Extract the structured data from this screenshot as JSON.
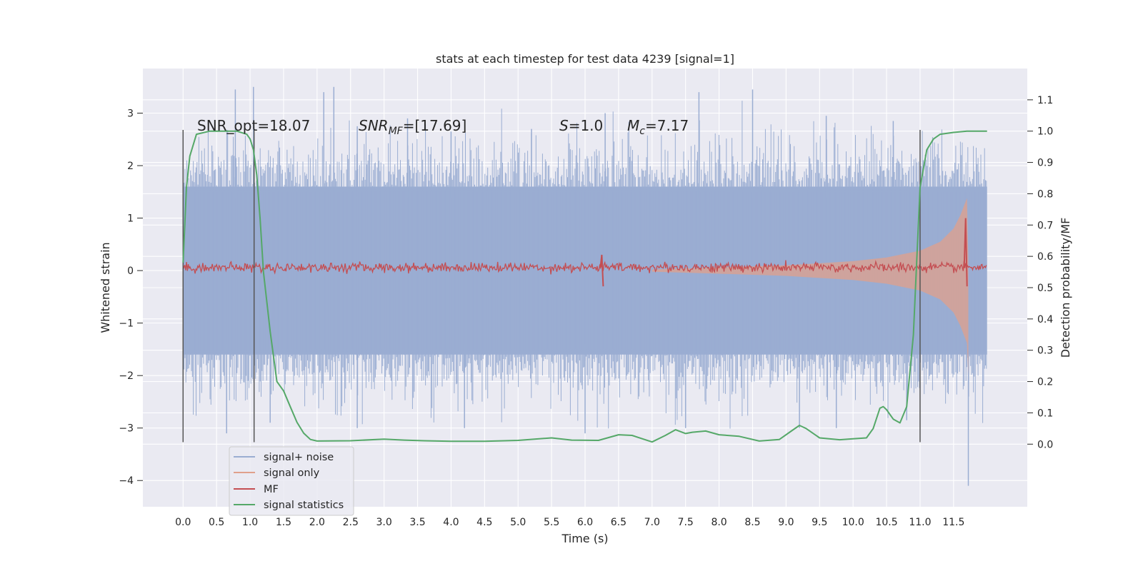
{
  "chart_data": {
    "type": "line",
    "title": "stats at each timestep for test data 4239 [signal=1]",
    "xlabel": "Time (s)",
    "ylabel": "Whitened strain",
    "y2label": "Detection probability/MF",
    "xlim": [
      -0.6,
      12.6
    ],
    "ylim": [
      -4.5,
      3.85
    ],
    "y2lim": [
      -0.2,
      1.2
    ],
    "x_ticks": [
      "0.0",
      "0.5",
      "1.0",
      "1.5",
      "2.0",
      "2.5",
      "3.0",
      "3.5",
      "4.0",
      "4.5",
      "5.0",
      "5.5",
      "6.0",
      "6.5",
      "7.0",
      "7.5",
      "8.0",
      "8.5",
      "9.0",
      "9.5",
      "10.0",
      "10.5",
      "11.0",
      "11.5"
    ],
    "y_ticks": [
      "3",
      "2",
      "1",
      "0",
      "−1",
      "−2",
      "−3",
      "−4"
    ],
    "y2_ticks": [
      "1.1",
      "1.0",
      "0.9",
      "0.8",
      "0.7",
      "0.6",
      "0.5",
      "0.4",
      "0.3",
      "0.2",
      "0.1",
      "0.0"
    ],
    "grid": true,
    "legend_position": "lower-left",
    "annotations": {
      "snr_opt": "SNR_opt=18.07",
      "snr_mf_sym": "SNR",
      "snr_mf_sub": "MF",
      "snr_mf_val": "=[17.69]",
      "s_sym": "S",
      "s_val": "=1.0",
      "mc_sym": "M",
      "mc_sub": "c",
      "mc_val": "=7.17"
    },
    "vertical_lines_x": [
      0.0,
      1.06,
      11.0
    ],
    "series": [
      {
        "name": "signal+ noise",
        "color": "#9aadd2",
        "kind": "noise-band",
        "x_range": [
          0.0,
          12.0
        ],
        "band_core": [
          -1.6,
          1.6
        ],
        "peaks_positive": [
          [
            0.78,
            3.45
          ],
          [
            1.05,
            3.5
          ],
          [
            2.25,
            3.5
          ],
          [
            2.1,
            3.4
          ],
          [
            7.7,
            3.4
          ],
          [
            8.5,
            3.45
          ],
          [
            6.3,
            3.0
          ],
          [
            9.6,
            2.95
          ],
          [
            3.35,
            2.9
          ],
          [
            10.6,
            2.85
          ],
          [
            2.6,
            2.75
          ],
          [
            4.0,
            2.65
          ],
          [
            5.2,
            2.7
          ]
        ],
        "peaks_negative": [
          [
            11.72,
            -4.1
          ],
          [
            0.65,
            -3.1
          ],
          [
            1.3,
            -2.9
          ],
          [
            2.6,
            -3.0
          ],
          [
            4.2,
            -3.0
          ],
          [
            6.0,
            -3.1
          ],
          [
            7.5,
            -3.0
          ],
          [
            9.2,
            -3.0
          ],
          [
            9.75,
            -3.0
          ],
          [
            10.8,
            -2.85
          ]
        ]
      },
      {
        "name": "signal only",
        "color": "#e0a08b",
        "kind": "chirp",
        "x": [
          7.0,
          8.0,
          9.0,
          10.0,
          10.5,
          11.0,
          11.3,
          11.5,
          11.6,
          11.7
        ],
        "amplitude": [
          0.02,
          0.06,
          0.1,
          0.18,
          0.25,
          0.38,
          0.55,
          0.8,
          1.05,
          1.38
        ]
      },
      {
        "name": "MF",
        "color": "#c44e52",
        "kind": "line",
        "baseline": 0.06,
        "spikes": [
          [
            6.25,
            0.3
          ],
          [
            11.68,
            1.0
          ]
        ]
      },
      {
        "name": "signal statistics",
        "color": "#55a868",
        "kind": "line",
        "x": [
          0.0,
          0.05,
          0.1,
          0.2,
          0.4,
          0.6,
          0.8,
          0.95,
          1.0,
          1.05,
          1.1,
          1.15,
          1.2,
          1.3,
          1.4,
          1.5,
          1.6,
          1.7,
          1.8,
          1.9,
          2.0,
          2.5,
          3.0,
          3.3,
          3.6,
          4.0,
          4.5,
          5.0,
          5.5,
          5.8,
          6.2,
          6.5,
          6.7,
          7.0,
          7.2,
          7.35,
          7.5,
          7.6,
          7.8,
          8.0,
          8.3,
          8.6,
          8.9,
          9.1,
          9.2,
          9.3,
          9.5,
          9.8,
          10.0,
          10.2,
          10.3,
          10.4,
          10.45,
          10.5,
          10.6,
          10.7,
          10.8,
          10.9,
          11.0,
          11.1,
          11.2,
          11.3,
          11.5,
          11.7,
          11.8,
          11.9,
          12.0
        ],
        "values": [
          0.58,
          0.82,
          0.92,
          0.99,
          1.0,
          1.0,
          1.0,
          0.99,
          0.975,
          0.94,
          0.86,
          0.72,
          0.55,
          0.36,
          0.2,
          0.17,
          0.12,
          0.07,
          0.035,
          0.015,
          0.01,
          0.011,
          0.016,
          0.013,
          0.011,
          0.009,
          0.009,
          0.012,
          0.02,
          0.013,
          0.012,
          0.03,
          0.028,
          0.007,
          0.028,
          0.046,
          0.034,
          0.038,
          0.042,
          0.03,
          0.025,
          0.01,
          0.015,
          0.045,
          0.06,
          0.05,
          0.02,
          0.014,
          0.017,
          0.02,
          0.05,
          0.115,
          0.12,
          0.11,
          0.08,
          0.068,
          0.12,
          0.35,
          0.82,
          0.94,
          0.975,
          0.99,
          0.996,
          1.0,
          1.0,
          1.0,
          1.0
        ]
      }
    ]
  }
}
